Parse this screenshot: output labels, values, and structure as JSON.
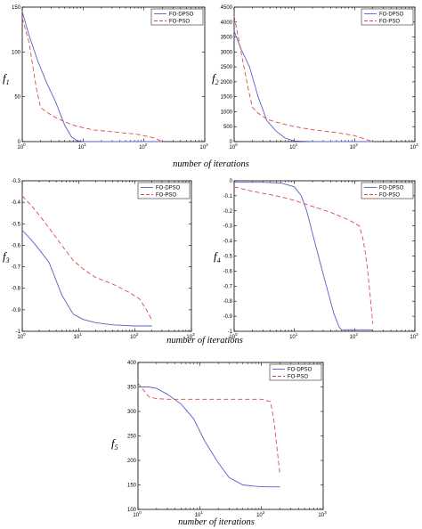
{
  "colors": {
    "fo_dpso": "#5b5fc7",
    "fo_pso": "#e0474c"
  },
  "captions": [
    "number of iterations",
    "number of iterations",
    "number of iterations"
  ],
  "chart_data": [
    {
      "type": "line",
      "ylabel": "f",
      "ylabel_sub": "1",
      "x_scale": "log",
      "xlim": [
        1,
        1000
      ],
      "xticks": [
        1,
        10,
        100,
        1000
      ],
      "ylim": [
        0,
        150
      ],
      "yticks": [
        0,
        50,
        100,
        150
      ],
      "ytick_labels": [
        "0",
        "50",
        "100",
        "150"
      ],
      "legend": "top-right",
      "series": [
        {
          "name": "FO-DPSO",
          "x": [
            1,
            1.3,
            1.8,
            2.5,
            3.5,
            5,
            6.5,
            8,
            10,
            200
          ],
          "y": [
            145,
            118,
            90,
            66,
            45,
            18,
            5,
            1,
            0,
            0
          ]
        },
        {
          "name": "FO-PSO",
          "x": [
            1,
            1.3,
            1.7,
            2,
            2.5,
            3.5,
            5,
            8,
            15,
            30,
            80,
            150,
            200
          ],
          "y": [
            138,
            110,
            60,
            38,
            33,
            27,
            22,
            17,
            13,
            11,
            8,
            4,
            0
          ]
        }
      ]
    },
    {
      "type": "line",
      "ylabel": "f",
      "ylabel_sub": "2",
      "x_scale": "log",
      "xlim": [
        1,
        1000
      ],
      "xticks": [
        1,
        10,
        100,
        1000
      ],
      "ylim": [
        0,
        4500
      ],
      "yticks": [
        0,
        500,
        1000,
        1500,
        2000,
        2500,
        3000,
        3500,
        4000,
        4500
      ],
      "ytick_labels": [
        "0",
        "500",
        "1000",
        "1500",
        "2000",
        "2500",
        "3000",
        "3500",
        "4000",
        "4500"
      ],
      "legend": "top-right",
      "series": [
        {
          "name": "FO-DPSO",
          "x": [
            1,
            1.3,
            1.8,
            2.5,
            3.5,
            5,
            7,
            10,
            20,
            200
          ],
          "y": [
            3700,
            3100,
            2500,
            1500,
            700,
            350,
            120,
            20,
            0,
            0
          ]
        },
        {
          "name": "FO-PSO",
          "x": [
            1,
            1.3,
            1.7,
            2,
            2.5,
            3.5,
            5,
            10,
            20,
            50,
            100,
            200
          ],
          "y": [
            4200,
            3000,
            1800,
            1150,
            950,
            750,
            650,
            500,
            400,
            300,
            200,
            0
          ]
        }
      ]
    },
    {
      "type": "line",
      "ylabel": "f",
      "ylabel_sub": "3",
      "x_scale": "log",
      "xlim": [
        1,
        1000
      ],
      "xticks": [
        1,
        10,
        100,
        1000
      ],
      "ylim": [
        -1,
        -0.3
      ],
      "yticks": [
        -1,
        -0.9,
        -0.8,
        -0.7,
        -0.6,
        -0.5,
        -0.4,
        -0.3
      ],
      "ytick_labels": [
        "-1",
        "-0.9",
        "-0.8",
        "-0.7",
        "-0.6",
        "-0.5",
        "-0.4",
        "-0.3"
      ],
      "legend": "top-right",
      "series": [
        {
          "name": "FO-DPSO",
          "x": [
            1,
            1.5,
            2,
            3,
            5,
            8,
            12,
            20,
            40,
            100,
            200
          ],
          "y": [
            -0.53,
            -0.58,
            -0.62,
            -0.68,
            -0.83,
            -0.92,
            -0.945,
            -0.96,
            -0.97,
            -0.975,
            -0.975
          ]
        },
        {
          "name": "FO-PSO",
          "x": [
            1,
            1.5,
            2,
            3,
            5,
            8,
            12,
            20,
            40,
            80,
            120,
            160,
            200
          ],
          "y": [
            -0.37,
            -0.42,
            -0.46,
            -0.52,
            -0.6,
            -0.67,
            -0.71,
            -0.75,
            -0.78,
            -0.82,
            -0.85,
            -0.9,
            -0.95
          ]
        }
      ]
    },
    {
      "type": "line",
      "ylabel": "f",
      "ylabel_sub": "4",
      "x_scale": "log",
      "xlim": [
        1,
        1000
      ],
      "xticks": [
        1,
        10,
        100,
        1000
      ],
      "ylim": [
        -1,
        0
      ],
      "yticks": [
        -1,
        -0.9,
        -0.8,
        -0.7,
        -0.6,
        -0.5,
        -0.4,
        -0.3,
        -0.2,
        -0.1,
        0
      ],
      "ytick_labels": [
        "-1",
        "-0.9",
        "-0.8",
        "-0.7",
        "-0.6",
        "-0.5",
        "-0.4",
        "-0.3",
        "-0.2",
        "-0.1",
        "0"
      ],
      "legend": "top-right",
      "series": [
        {
          "name": "FO-DPSO",
          "x": [
            1,
            3,
            6,
            10,
            13,
            16,
            20,
            30,
            45,
            55,
            60,
            80,
            200
          ],
          "y": [
            -0.01,
            -0.01,
            -0.015,
            -0.04,
            -0.1,
            -0.2,
            -0.35,
            -0.62,
            -0.88,
            -0.97,
            -0.99,
            -0.99,
            -0.99
          ]
        },
        {
          "name": "FO-PSO",
          "x": [
            1,
            2,
            5,
            10,
            20,
            40,
            80,
            120,
            140,
            160,
            180,
            200
          ],
          "y": [
            -0.04,
            -0.07,
            -0.1,
            -0.13,
            -0.17,
            -0.21,
            -0.26,
            -0.3,
            -0.4,
            -0.55,
            -0.75,
            -0.95
          ]
        }
      ]
    },
    {
      "type": "line",
      "ylabel": "f",
      "ylabel_sub": "5",
      "x_scale": "log",
      "xlim": [
        1,
        1000
      ],
      "xticks": [
        1,
        10,
        100,
        1000
      ],
      "ylim": [
        100,
        400
      ],
      "yticks": [
        100,
        150,
        200,
        250,
        300,
        350,
        400
      ],
      "ytick_labels": [
        "100",
        "150",
        "200",
        "250",
        "300",
        "350",
        "400"
      ],
      "legend": "top-right",
      "series": [
        {
          "name": "FO-DPSO",
          "x": [
            1,
            1.5,
            2,
            3,
            5,
            8,
            12,
            20,
            30,
            50,
            80,
            120,
            200
          ],
          "y": [
            350,
            350,
            347,
            335,
            315,
            285,
            240,
            195,
            165,
            150,
            147,
            146,
            146
          ]
        },
        {
          "name": "FO-PSO",
          "x": [
            1,
            1.5,
            2,
            3,
            10,
            50,
            100,
            140,
            160,
            180,
            200
          ],
          "y": [
            358,
            330,
            326,
            325,
            325,
            325,
            325,
            320,
            280,
            220,
            170
          ]
        }
      ]
    }
  ]
}
